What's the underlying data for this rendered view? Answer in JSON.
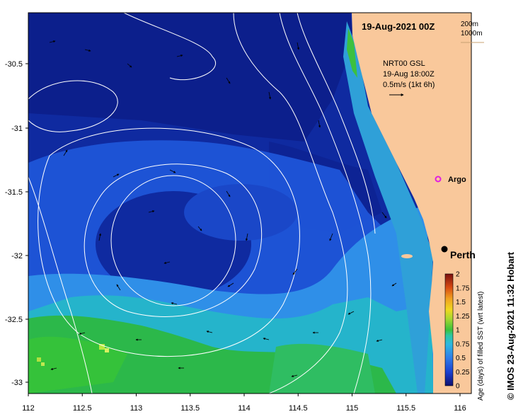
{
  "title": "19-Aug-2021 00Z",
  "depth_legend": [
    "200m",
    "1000m"
  ],
  "current_info": {
    "model": "NRT00 GSL",
    "time": "19-Aug 18:00Z",
    "scale": "0.5m/s (1kt 6h)"
  },
  "axes": {
    "lon_ticks": [
      "112",
      "112.5",
      "113",
      "113.5",
      "114",
      "114.5",
      "115",
      "115.5",
      "116"
    ],
    "lat_ticks": [
      "-30.5",
      "-31",
      "-31.5",
      "-32",
      "-32.5",
      "-33"
    ],
    "lon_range": [
      112,
      116
    ],
    "lat_range": [
      -33.1,
      -30.1
    ]
  },
  "places": [
    {
      "name": "Argo",
      "lon": 115.8,
      "lat": -31.5,
      "marker": "magenta-ring"
    },
    {
      "name": "Perth",
      "lon": 115.86,
      "lat": -31.95,
      "marker": "black-dot"
    }
  ],
  "colorbar": {
    "label": "Age (days) of filled SST (wrt latest)",
    "ticks": [
      "2",
      "1.75",
      "1.5",
      "1.25",
      "1",
      "0.75",
      "0.5",
      "0.25",
      "0"
    ],
    "range": [
      0,
      2
    ]
  },
  "credit": "© IMOS 23-Aug-2021 11:32 Hobart",
  "colors": {
    "deep_navy": "#0a1a80",
    "navy": "#0f2aa0",
    "blue": "#1f5fe6",
    "light_blue": "#2fa0ea",
    "cyan": "#25c8c0",
    "green": "#2cb83a",
    "yellow_green": "#a8e040",
    "land": "#f9c89b",
    "contour": "#ffffff"
  }
}
